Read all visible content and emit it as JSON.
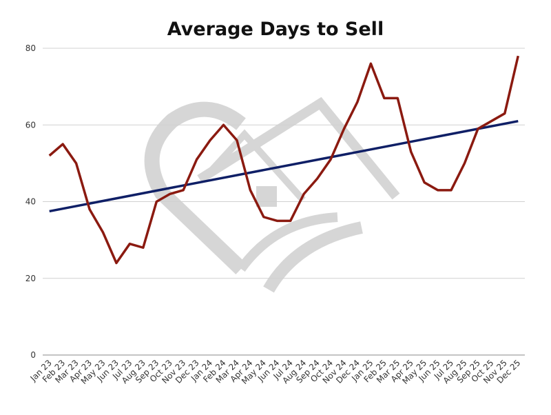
{
  "chart_data": {
    "type": "line",
    "title": "Average Days to Sell",
    "xlabel": "",
    "ylabel": "",
    "ylim": [
      0,
      80
    ],
    "yticks": [
      0,
      20,
      40,
      60,
      80
    ],
    "grid": true,
    "categories": [
      "Jan 23",
      "Feb 23",
      "Mar 23",
      "Apr 23",
      "May 23",
      "Jun 23",
      "Jul 23",
      "Aug 23",
      "Sep 23",
      "Oct 23",
      "Nov 23",
      "Dec 23",
      "Jan 24",
      "Feb 24",
      "Mar 24",
      "Apr 24",
      "May 24",
      "Jun 24",
      "Jul 24",
      "Aug 24",
      "Sep 24",
      "Oct 24",
      "Nov 24",
      "Dec 24",
      "Jan 25",
      "Feb 25",
      "Mar 25",
      "Apr 25",
      "May 25",
      "Jun 25",
      "Jul 25",
      "Aug 25",
      "Sep 25",
      "Oct 25",
      "Nov 25",
      "Dec 25"
    ],
    "series": [
      {
        "values": [
          52,
          55,
          50,
          38,
          32,
          24,
          29,
          28,
          40,
          42,
          43,
          51,
          56,
          60,
          56,
          43,
          36,
          35,
          35,
          42,
          46,
          51,
          59,
          66,
          76,
          67,
          67,
          53,
          45,
          43,
          43,
          50,
          59,
          61,
          63,
          78
        ],
        "color": "#8b1a10"
      }
    ],
    "trendline": {
      "start": 37.5,
      "end": 61,
      "color": "#0f1f66"
    }
  }
}
